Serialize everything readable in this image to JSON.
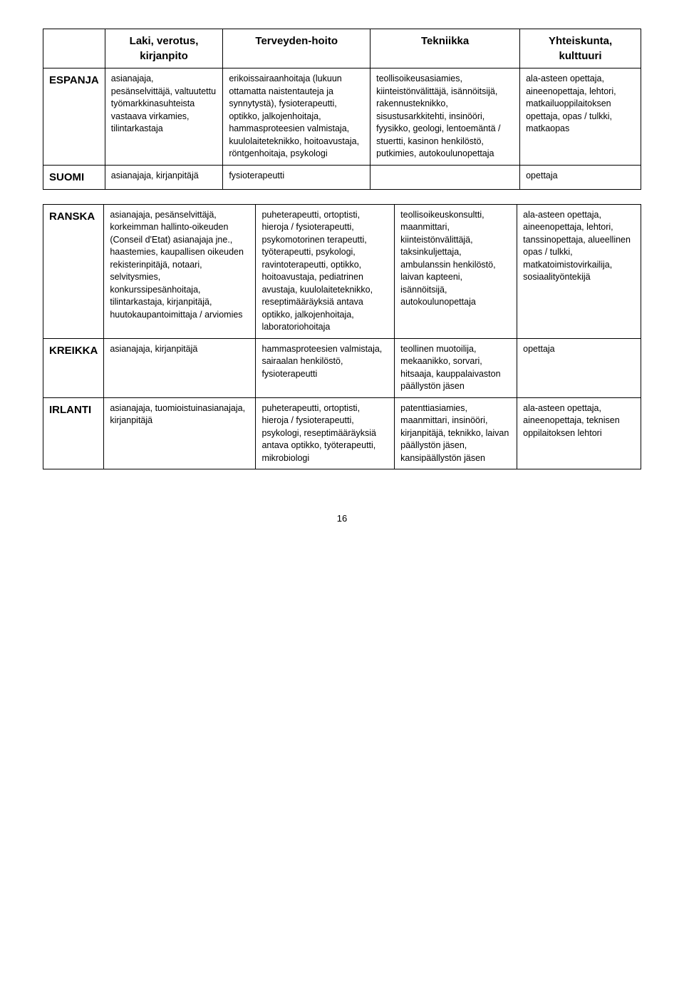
{
  "table1": {
    "headers": [
      "",
      "Laki, verotus, kirjanpito",
      "Terveyden-hoito",
      "Tekniikka",
      "Yhteiskunta, kulttuuri"
    ],
    "rows": [
      {
        "label": "ESPANJA",
        "cells": [
          "asianajaja, pesänselvittäjä, valtuutettu työmarkkinasuhteista vastaava virkamies, tilintarkastaja",
          "erikoissairaanhoitaja (lukuun ottamatta naistentauteja ja synnytystä), fysioterapeutti, optikko, jalkojenhoitaja, hammasproteesien valmistaja, kuulolaiteteknikko, hoitoavustaja, röntgenhoitaja, psykologi",
          "teollisoikeusasiamies, kiinteistönvälittäjä, isännöitsijä, rakennusteknikko, sisustusarkkitehti, insinööri, fyysikko, geologi, lentoemäntä / stuertti, kasinon henkilöstö, putkimies, autokoulunopettaja",
          "ala-asteen opettaja, aineenopettaja, lehtori, matkailuoppilaitoksen opettaja, opas / tulkki, matkaopas"
        ]
      },
      {
        "label": "SUOMI",
        "cells": [
          "asianajaja, kirjanpitäjä",
          "fysioterapeutti",
          "",
          "opettaja"
        ]
      }
    ]
  },
  "table2": {
    "rows": [
      {
        "label": "RANSKA",
        "cells": [
          "asianajaja, pesänselvittäjä, korkeimman hallinto-oikeuden (Conseil d'Etat) asianajaja jne., haastemies, kaupallisen oikeuden rekisterinpitäjä, notaari, selvitysmies, konkurssipesänhoitaja, tilintarkastaja, kirjanpitäjä, huutokaupantoimittaja / arviomies",
          "puheterapeutti, ortoptisti, hieroja / fysioterapeutti, psykomotorinen terapeutti, työterapeutti, psykologi, ravintoterapeutti, optikko, hoitoavustaja, pediatrinen avustaja, kuulolaiteteknikko, reseptimääräyksiä antava optikko, jalkojenhoitaja, laboratoriohoitaja",
          "teollisoikeuskonsultti, maanmittari, kiinteistönvälittäjä, taksinkuljettaja, ambulanssin henkilöstö, laivan kapteeni, isännöitsijä, autokoulunopettaja",
          "ala-asteen opettaja, aineenopettaja, lehtori, tanssinopettaja, alueellinen opas / tulkki, matkatoimistovirkailija, sosiaalityöntekijä"
        ]
      },
      {
        "label": "KREIKKA",
        "cells": [
          "asianajaja, kirjanpitäjä",
          "hammasproteesien valmistaja, sairaalan henkilöstö, fysioterapeutti",
          "teollinen muotoilija, mekaanikko, sorvari, hitsaaja, kauppalaivaston päällystön jäsen",
          "opettaja"
        ]
      },
      {
        "label": "IRLANTI",
        "cells": [
          "asianajaja, tuomioistuinasianajaja, kirjanpitäjä",
          "puheterapeutti, ortoptisti, hieroja / fysioterapeutti, psykologi, reseptimääräyksiä antava optikko, työterapeutti, mikrobiologi",
          "patenttiasiamies, maanmittari, insinööri, kirjanpitäjä, teknikko, laivan päällystön jäsen, kansipäällystön jäsen",
          "ala-asteen opettaja, aineenopettaja, teknisen oppilaitoksen lehtori"
        ]
      }
    ]
  },
  "pageNumber": "16"
}
